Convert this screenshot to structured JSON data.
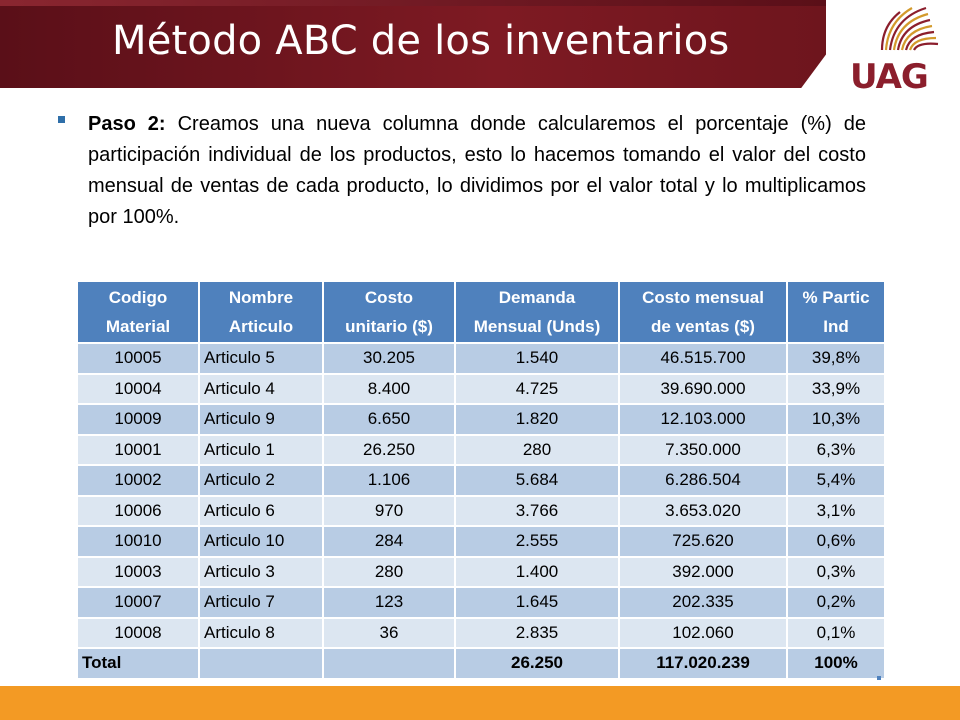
{
  "slide": {
    "title": "Método ABC de los inventarios",
    "logo_text": "UAG",
    "bullet": {
      "label": "Paso 2:",
      "text": " Creamos una nueva columna donde calcularemos el porcentaje (%) de participación individual de los productos, esto lo hacemos tomando el valor del costo mensual de ventas de cada producto, lo dividimos por el valor total y lo multiplicamos por 100%."
    }
  },
  "colors": {
    "title_bar": "#6e151d",
    "header_fill": "#4f81bd",
    "row_dark": "#b8cce4",
    "row_light": "#dce6f1",
    "bottom_bar": "#f39a24",
    "logo_red": "#8b1e2c",
    "logo_gold": "#d39a2c"
  },
  "table": {
    "headers": [
      [
        "Codigo",
        "Material"
      ],
      [
        "Nombre",
        "Articulo"
      ],
      [
        "Costo",
        "unitario ($)"
      ],
      [
        "Demanda",
        "Mensual (Unds)"
      ],
      [
        "Costo mensual",
        "de ventas ($)"
      ],
      [
        "% Partic",
        "Ind"
      ]
    ],
    "rows": [
      [
        "10005",
        "Articulo 5",
        "30.205",
        "1.540",
        "46.515.700",
        "39,8%"
      ],
      [
        "10004",
        "Articulo 4",
        "8.400",
        "4.725",
        "39.690.000",
        "33,9%"
      ],
      [
        "10009",
        "Articulo 9",
        "6.650",
        "1.820",
        "12.103.000",
        "10,3%"
      ],
      [
        "10001",
        "Articulo 1",
        "26.250",
        "280",
        "7.350.000",
        "6,3%"
      ],
      [
        "10002",
        "Articulo 2",
        "1.106",
        "5.684",
        "6.286.504",
        "5,4%"
      ],
      [
        "10006",
        "Articulo 6",
        "970",
        "3.766",
        "3.653.020",
        "3,1%"
      ],
      [
        "10010",
        "Articulo 10",
        "284",
        "2.555",
        "725.620",
        "0,6%"
      ],
      [
        "10003",
        "Articulo 3",
        "280",
        "1.400",
        "392.000",
        "0,3%"
      ],
      [
        "10007",
        "Articulo 7",
        "123",
        "1.645",
        "202.335",
        "0,2%"
      ],
      [
        "10008",
        "Articulo 8",
        "36",
        "2.835",
        "102.060",
        "0,1%"
      ]
    ],
    "total": [
      "Total",
      "",
      "",
      "26.250",
      "117.020.239",
      "100%"
    ]
  }
}
